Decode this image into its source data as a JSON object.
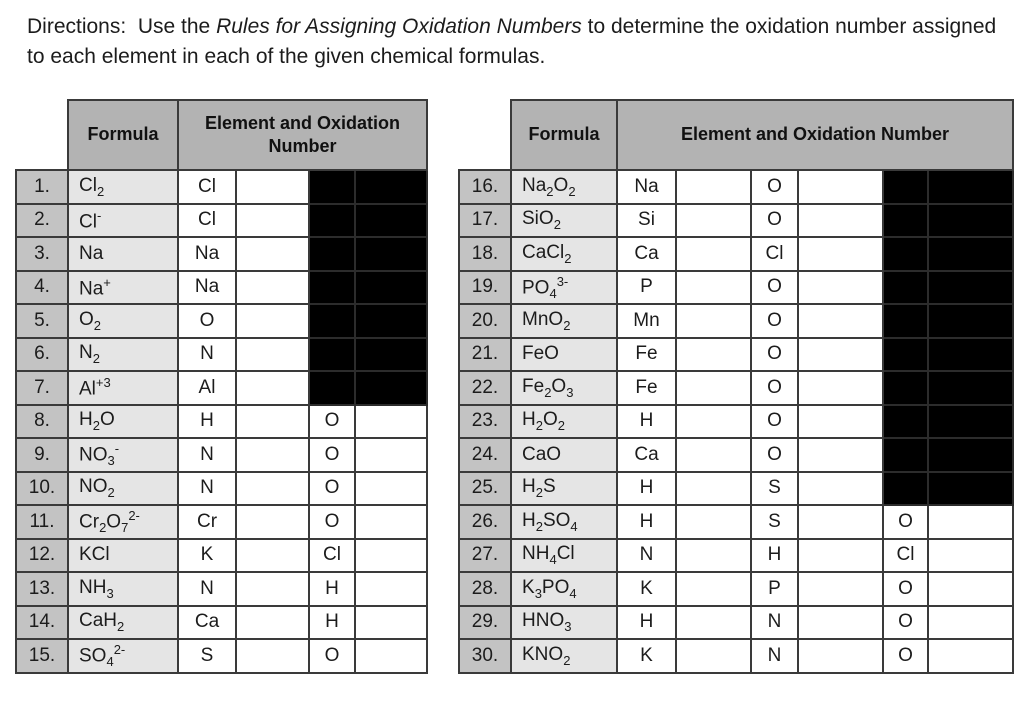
{
  "directions": {
    "prefix": "Directions:  Use the ",
    "italic": "Rules for Assigning Oxidation Numbers",
    "suffix_line1": " to determine the oxidation number assigned",
    "line2": "to each element in each of the given chemical formulas."
  },
  "colors": {
    "header_gray": "#b3b3b3",
    "number_col_gray": "#c3c3c3",
    "formula_col_gray": "#e5e5e5",
    "grid_line": "#3a3a3a",
    "redaction_black": "#000000"
  },
  "tables": [
    {
      "side": "left",
      "header_formula": "Formula",
      "header_element": "Element and Oxidation Number",
      "rows": [
        {
          "num": "1.",
          "formula": [
            [
              "t",
              "Cl"
            ],
            [
              "sub",
              "2"
            ]
          ],
          "cells": [
            "Cl",
            "",
            null,
            null
          ]
        },
        {
          "num": "2.",
          "formula": [
            [
              "t",
              "Cl"
            ],
            [
              "sup",
              "-"
            ]
          ],
          "cells": [
            "Cl",
            "",
            null,
            null
          ]
        },
        {
          "num": "3.",
          "formula": [
            [
              "t",
              "Na"
            ]
          ],
          "cells": [
            "Na",
            "",
            null,
            null
          ]
        },
        {
          "num": "4.",
          "formula": [
            [
              "t",
              "Na"
            ],
            [
              "sup",
              "+"
            ]
          ],
          "cells": [
            "Na",
            "",
            null,
            null
          ]
        },
        {
          "num": "5.",
          "formula": [
            [
              "t",
              "O"
            ],
            [
              "sub",
              "2"
            ]
          ],
          "cells": [
            "O",
            "",
            null,
            null
          ]
        },
        {
          "num": "6.",
          "formula": [
            [
              "t",
              "N"
            ],
            [
              "sub",
              "2"
            ]
          ],
          "cells": [
            "N",
            "",
            null,
            null
          ]
        },
        {
          "num": "7.",
          "formula": [
            [
              "t",
              "Al"
            ],
            [
              "sup",
              "+3"
            ]
          ],
          "cells": [
            "Al",
            "",
            null,
            null
          ]
        },
        {
          "num": "8.",
          "formula": [
            [
              "t",
              "H"
            ],
            [
              "sub",
              "2"
            ],
            [
              "t",
              "O"
            ]
          ],
          "cells": [
            "H",
            "",
            "O",
            ""
          ]
        },
        {
          "num": "9.",
          "formula": [
            [
              "t",
              "NO"
            ],
            [
              "sub",
              "3"
            ],
            [
              "sup",
              "-"
            ]
          ],
          "cells": [
            "N",
            "",
            "O",
            ""
          ]
        },
        {
          "num": "10.",
          "formula": [
            [
              "t",
              "NO"
            ],
            [
              "sub",
              "2"
            ]
          ],
          "cells": [
            "N",
            "",
            "O",
            ""
          ]
        },
        {
          "num": "11.",
          "formula": [
            [
              "t",
              "Cr"
            ],
            [
              "sub",
              "2"
            ],
            [
              "t",
              "O"
            ],
            [
              "sub",
              "7"
            ],
            [
              "sup",
              "2-"
            ]
          ],
          "cells": [
            "Cr",
            "",
            "O",
            ""
          ]
        },
        {
          "num": "12.",
          "formula": [
            [
              "t",
              "KCl"
            ]
          ],
          "cells": [
            "K",
            "",
            "Cl",
            ""
          ]
        },
        {
          "num": "13.",
          "formula": [
            [
              "t",
              "NH"
            ],
            [
              "sub",
              "3"
            ]
          ],
          "cells": [
            "N",
            "",
            "H",
            ""
          ]
        },
        {
          "num": "14.",
          "formula": [
            [
              "t",
              "CaH"
            ],
            [
              "sub",
              "2"
            ]
          ],
          "cells": [
            "Ca",
            "",
            "H",
            ""
          ]
        },
        {
          "num": "15.",
          "formula": [
            [
              "t",
              "SO"
            ],
            [
              "sub",
              "4"
            ],
            [
              "sup",
              "2-"
            ]
          ],
          "cells": [
            "S",
            "",
            "O",
            ""
          ]
        }
      ]
    },
    {
      "side": "right",
      "header_formula": "Formula",
      "header_element": "Element and Oxidation Number",
      "rows": [
        {
          "num": "16.",
          "formula": [
            [
              "t",
              "Na"
            ],
            [
              "sub",
              "2"
            ],
            [
              "t",
              "O"
            ],
            [
              "sub",
              "2"
            ]
          ],
          "cells": [
            "Na",
            "",
            "O",
            "",
            null,
            null
          ]
        },
        {
          "num": "17.",
          "formula": [
            [
              "t",
              "SiO"
            ],
            [
              "sub",
              "2"
            ]
          ],
          "cells": [
            "Si",
            "",
            "O",
            "",
            null,
            null
          ]
        },
        {
          "num": "18.",
          "formula": [
            [
              "t",
              "CaCl"
            ],
            [
              "sub",
              "2"
            ]
          ],
          "cells": [
            "Ca",
            "",
            "Cl",
            "",
            null,
            null
          ]
        },
        {
          "num": "19.",
          "formula": [
            [
              "t",
              "PO"
            ],
            [
              "sub",
              "4"
            ],
            [
              "sup",
              "3-"
            ]
          ],
          "cells": [
            "P",
            "",
            "O",
            "",
            null,
            null
          ]
        },
        {
          "num": "20.",
          "formula": [
            [
              "t",
              "MnO"
            ],
            [
              "sub",
              "2"
            ]
          ],
          "cells": [
            "Mn",
            "",
            "O",
            "",
            null,
            null
          ]
        },
        {
          "num": "21.",
          "formula": [
            [
              "t",
              "FeO"
            ]
          ],
          "cells": [
            "Fe",
            "",
            "O",
            "",
            null,
            null
          ]
        },
        {
          "num": "22.",
          "formula": [
            [
              "t",
              "Fe"
            ],
            [
              "sub",
              "2"
            ],
            [
              "t",
              "O"
            ],
            [
              "sub",
              "3"
            ]
          ],
          "cells": [
            "Fe",
            "",
            "O",
            "",
            null,
            null
          ]
        },
        {
          "num": "23.",
          "formula": [
            [
              "t",
              "H"
            ],
            [
              "sub",
              "2"
            ],
            [
              "t",
              "O"
            ],
            [
              "sub",
              "2"
            ]
          ],
          "cells": [
            "H",
            "",
            "O",
            "",
            null,
            null
          ]
        },
        {
          "num": "24.",
          "formula": [
            [
              "t",
              "CaO"
            ]
          ],
          "cells": [
            "Ca",
            "",
            "O",
            "",
            null,
            null
          ]
        },
        {
          "num": "25.",
          "formula": [
            [
              "t",
              "H"
            ],
            [
              "sub",
              "2"
            ],
            [
              "t",
              "S"
            ]
          ],
          "cells": [
            "H",
            "",
            "S",
            "",
            null,
            null
          ]
        },
        {
          "num": "26.",
          "formula": [
            [
              "t",
              "H"
            ],
            [
              "sub",
              "2"
            ],
            [
              "t",
              "SO"
            ],
            [
              "sub",
              "4"
            ]
          ],
          "cells": [
            "H",
            "",
            "S",
            "",
            "O",
            ""
          ]
        },
        {
          "num": "27.",
          "formula": [
            [
              "t",
              "NH"
            ],
            [
              "sub",
              "4"
            ],
            [
              "t",
              "Cl"
            ]
          ],
          "cells": [
            "N",
            "",
            "H",
            "",
            "Cl",
            ""
          ]
        },
        {
          "num": "28.",
          "formula": [
            [
              "t",
              "K"
            ],
            [
              "sub",
              "3"
            ],
            [
              "t",
              "PO"
            ],
            [
              "sub",
              "4"
            ]
          ],
          "cells": [
            "K",
            "",
            "P",
            "",
            "O",
            ""
          ]
        },
        {
          "num": "29.",
          "formula": [
            [
              "t",
              "HNO"
            ],
            [
              "sub",
              "3"
            ]
          ],
          "cells": [
            "H",
            "",
            "N",
            "",
            "O",
            ""
          ]
        },
        {
          "num": "30.",
          "formula": [
            [
              "t",
              "KNO"
            ],
            [
              "sub",
              "2"
            ]
          ],
          "cells": [
            "K",
            "",
            "N",
            "",
            "O",
            ""
          ]
        }
      ]
    }
  ]
}
